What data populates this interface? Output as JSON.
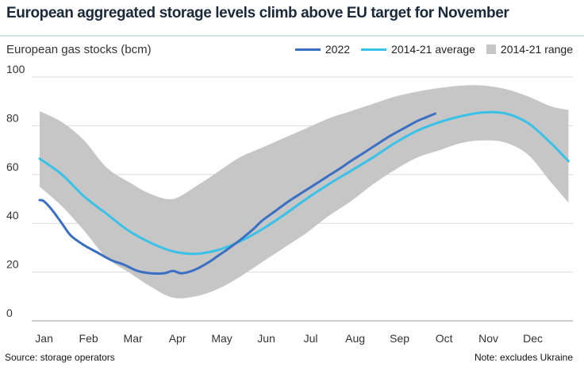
{
  "header": {
    "title": "European aggregated storage levels climb above EU target for November",
    "subtitle": "European gas stocks (bcm)"
  },
  "footer": {
    "source": "Source: storage operators",
    "note": "Note: excludes Ukraine"
  },
  "colors": {
    "series_2022": "#3a6fc4",
    "series_avg": "#39c1e8",
    "range_fill": "#c6c6c6",
    "grid": "#dcdcdc"
  },
  "chart_data": {
    "type": "line",
    "title": "European aggregated storage levels climb above EU target for November",
    "ylabel": "European gas stocks (bcm)",
    "xlabel": "",
    "ylim": [
      0,
      100
    ],
    "yticks": [
      0,
      20,
      40,
      60,
      80,
      100
    ],
    "categories": [
      "Jan",
      "Feb",
      "Mar",
      "Apr",
      "May",
      "Jun",
      "Jul",
      "Aug",
      "Sep",
      "Oct",
      "Nov",
      "Dec"
    ],
    "legend": {
      "position": "top-right",
      "entries": [
        "2022",
        "2014-21 average",
        "2014-21 range"
      ]
    },
    "grid": true,
    "x": [
      0,
      0.5,
      1,
      1.5,
      2,
      2.5,
      3,
      3.5,
      4,
      4.5,
      5,
      5.5,
      6,
      6.5,
      7,
      7.5,
      8,
      8.5,
      9,
      9.5,
      10,
      10.5,
      11,
      11.5,
      11.9
    ],
    "series": [
      {
        "name": "2022",
        "x": [
          0,
          0.1,
          0.3,
          0.5,
          0.7,
          1.0,
          1.3,
          1.6,
          1.9,
          2.2,
          2.5,
          2.8,
          3.0,
          3.2,
          3.5,
          3.8,
          4.0,
          4.2,
          4.5,
          4.8,
          5.0,
          5.3,
          5.6,
          5.9,
          6.2,
          6.5,
          6.8,
          7.0,
          7.3,
          7.6,
          7.9,
          8.2,
          8.5,
          8.7,
          8.9
        ],
        "values": [
          49.5,
          49,
          45,
          40,
          35,
          31,
          28,
          25,
          23,
          20.5,
          19.5,
          19.5,
          20.5,
          19.5,
          21,
          24,
          26.5,
          29,
          33,
          37.5,
          41,
          45,
          49,
          52.5,
          56,
          59.5,
          63,
          65.5,
          69,
          72.5,
          76,
          79,
          82,
          83.5,
          85
        ]
      },
      {
        "name": "2014-21 average",
        "x": [
          0,
          0.5,
          1,
          1.5,
          2,
          2.5,
          3,
          3.5,
          4,
          4.5,
          5,
          5.5,
          6,
          6.5,
          7,
          7.5,
          8,
          8.5,
          9,
          9.5,
          10,
          10.5,
          11,
          11.5,
          11.9
        ],
        "values": [
          66.5,
          60,
          51,
          44,
          37,
          32,
          28.5,
          27.5,
          29,
          32.5,
          37.5,
          43.5,
          50,
          56,
          61.5,
          67,
          73,
          78,
          81.5,
          84,
          85.5,
          85,
          81,
          73,
          65.5
        ]
      },
      {
        "name": "2014-21 range",
        "x": [
          0,
          0.5,
          1,
          1.5,
          2,
          2.5,
          3,
          3.5,
          4,
          4.5,
          5,
          5.5,
          6,
          6.5,
          7,
          7.5,
          8,
          8.5,
          9,
          9.5,
          10,
          10.5,
          11,
          11.5,
          11.9
        ],
        "min": [
          55,
          47,
          37,
          26,
          20,
          14,
          9.5,
          10,
          13,
          18,
          24,
          30,
          36,
          43,
          49,
          56,
          62,
          67,
          70,
          73,
          74,
          73,
          68,
          57,
          48.5
        ],
        "max": [
          86,
          81.5,
          74,
          63,
          57,
          52,
          50,
          55,
          61,
          67,
          71,
          75,
          79,
          83,
          86,
          89,
          92,
          94,
          95.5,
          96.5,
          96.5,
          95,
          92,
          88,
          86.5
        ]
      }
    ]
  }
}
